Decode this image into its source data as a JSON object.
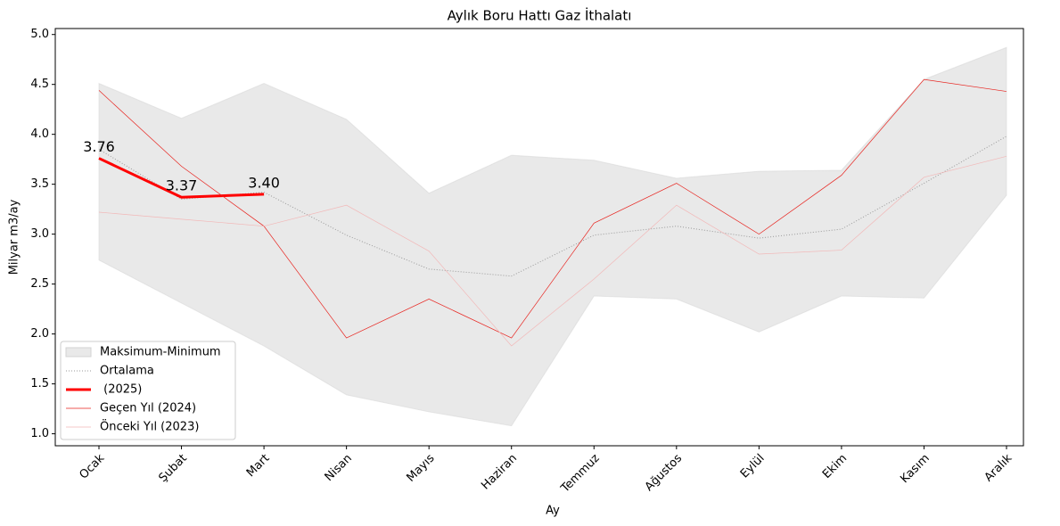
{
  "chart_data": {
    "type": "line",
    "title": "Aylık Boru Hattı Gaz İthalatı",
    "x_label": "Ay",
    "y_label": "Milyar m3/ay",
    "categories": [
      "Ocak",
      "Şubat",
      "Mart",
      "Nisan",
      "Mayıs",
      "Haziran",
      "Temmuz",
      "Ağustos",
      "Eylül",
      "Ekim",
      "Kasım",
      "Aralık"
    ],
    "ylim": [
      0.88,
      5.06
    ],
    "yticks": [
      {
        "value": 1,
        "label": "1.0"
      },
      1.5,
      {
        "value": 2,
        "label": "2.0"
      },
      2.5,
      {
        "value": 3,
        "label": "3.0"
      },
      3.5,
      {
        "value": 4,
        "label": "4.0"
      },
      4.5,
      {
        "value": 5,
        "label": "5.0"
      }
    ],
    "legend": "lower left",
    "band": {
      "name": "Maksimum-Minimum",
      "color": "#d3d3d3",
      "upper": [
        4.51,
        4.16,
        4.51,
        4.15,
        3.41,
        3.79,
        3.74,
        3.56,
        3.63,
        3.64,
        4.55,
        4.87
      ],
      "lower": [
        2.74,
        2.31,
        1.88,
        1.39,
        1.22,
        1.08,
        2.38,
        2.35,
        2.02,
        2.38,
        2.36,
        3.39
      ]
    },
    "series": [
      {
        "name": "Ortalama",
        "color": "#999999",
        "style": "dotted",
        "width": 1,
        "values": [
          3.85,
          3.35,
          3.42,
          2.99,
          2.65,
          2.58,
          2.99,
          3.08,
          2.96,
          3.05,
          3.51,
          3.98
        ]
      },
      {
        "name": " (2025)",
        "color": "#ff0000",
        "style": "solid",
        "width": 3,
        "values": [
          3.76,
          3.37,
          3.4,
          null,
          null,
          null,
          null,
          null,
          null,
          null,
          null,
          null
        ],
        "value_labels": [
          "3.76",
          "3.37",
          "3.40",
          null,
          null,
          null,
          null,
          null,
          null,
          null,
          null,
          null
        ]
      },
      {
        "name": "Geçen Yıl (2024)",
        "color": "#e8231e",
        "style": "solid",
        "width": 0.7,
        "values": [
          4.44,
          3.68,
          3.08,
          1.96,
          2.35,
          1.96,
          3.11,
          3.51,
          3.0,
          3.59,
          4.55,
          4.43
        ]
      },
      {
        "name": "Önceki Yıl (2023)",
        "color": "#f2b8b8",
        "style": "solid",
        "width": 0.7,
        "values": [
          3.22,
          3.15,
          3.08,
          3.29,
          2.83,
          1.88,
          2.55,
          3.29,
          2.8,
          2.84,
          3.57,
          3.78
        ]
      }
    ]
  }
}
